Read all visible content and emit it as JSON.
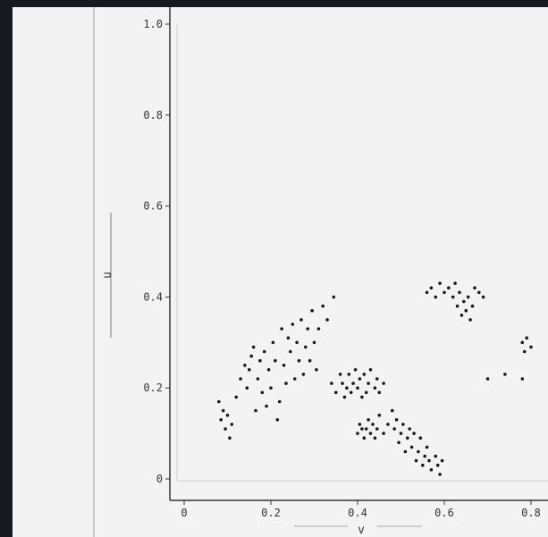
{
  "chart_data": {
    "type": "scatter",
    "title": "",
    "xlabel": "v",
    "ylabel": "u",
    "xlim": [
      -0.02,
      0.82
    ],
    "ylim": [
      -0.06,
      1.02
    ],
    "x_ticks": [
      "0",
      "0.2",
      "0.4",
      "0.6",
      "0.8"
    ],
    "y_ticks": [
      "0",
      "0.2",
      "0.4",
      "0.6",
      "0.8",
      "1.0"
    ],
    "grid": false,
    "series": [
      {
        "points": [
          [
            0.08,
            0.17
          ],
          [
            0.085,
            0.13
          ],
          [
            0.09,
            0.15
          ],
          [
            0.095,
            0.11
          ],
          [
            0.1,
            0.14
          ],
          [
            0.105,
            0.09
          ],
          [
            0.11,
            0.12
          ],
          [
            0.12,
            0.18
          ],
          [
            0.13,
            0.22
          ],
          [
            0.14,
            0.25
          ],
          [
            0.145,
            0.2
          ],
          [
            0.15,
            0.24
          ],
          [
            0.155,
            0.27
          ],
          [
            0.16,
            0.29
          ],
          [
            0.165,
            0.15
          ],
          [
            0.17,
            0.22
          ],
          [
            0.175,
            0.26
          ],
          [
            0.18,
            0.19
          ],
          [
            0.185,
            0.28
          ],
          [
            0.19,
            0.16
          ],
          [
            0.195,
            0.24
          ],
          [
            0.2,
            0.2
          ],
          [
            0.205,
            0.3
          ],
          [
            0.21,
            0.26
          ],
          [
            0.215,
            0.13
          ],
          [
            0.22,
            0.17
          ],
          [
            0.225,
            0.33
          ],
          [
            0.23,
            0.25
          ],
          [
            0.235,
            0.21
          ],
          [
            0.24,
            0.31
          ],
          [
            0.245,
            0.28
          ],
          [
            0.25,
            0.34
          ],
          [
            0.255,
            0.22
          ],
          [
            0.26,
            0.3
          ],
          [
            0.265,
            0.26
          ],
          [
            0.27,
            0.35
          ],
          [
            0.275,
            0.23
          ],
          [
            0.28,
            0.29
          ],
          [
            0.285,
            0.33
          ],
          [
            0.29,
            0.26
          ],
          [
            0.295,
            0.37
          ],
          [
            0.3,
            0.3
          ],
          [
            0.305,
            0.24
          ],
          [
            0.31,
            0.33
          ],
          [
            0.32,
            0.38
          ],
          [
            0.33,
            0.35
          ],
          [
            0.34,
            0.21
          ],
          [
            0.345,
            0.4
          ],
          [
            0.35,
            0.19
          ],
          [
            0.36,
            0.23
          ],
          [
            0.365,
            0.21
          ],
          [
            0.37,
            0.18
          ],
          [
            0.375,
            0.2
          ],
          [
            0.38,
            0.23
          ],
          [
            0.385,
            0.19
          ],
          [
            0.39,
            0.21
          ],
          [
            0.395,
            0.24
          ],
          [
            0.4,
            0.2
          ],
          [
            0.405,
            0.22
          ],
          [
            0.41,
            0.18
          ],
          [
            0.415,
            0.23
          ],
          [
            0.42,
            0.19
          ],
          [
            0.425,
            0.21
          ],
          [
            0.43,
            0.24
          ],
          [
            0.44,
            0.2
          ],
          [
            0.445,
            0.22
          ],
          [
            0.45,
            0.19
          ],
          [
            0.46,
            0.21
          ],
          [
            0.4,
            0.1
          ],
          [
            0.405,
            0.12
          ],
          [
            0.41,
            0.11
          ],
          [
            0.415,
            0.09
          ],
          [
            0.42,
            0.11
          ],
          [
            0.425,
            0.13
          ],
          [
            0.43,
            0.1
          ],
          [
            0.435,
            0.12
          ],
          [
            0.44,
            0.09
          ],
          [
            0.445,
            0.11
          ],
          [
            0.45,
            0.14
          ],
          [
            0.46,
            0.1
          ],
          [
            0.47,
            0.12
          ],
          [
            0.48,
            0.15
          ],
          [
            0.485,
            0.11
          ],
          [
            0.49,
            0.13
          ],
          [
            0.495,
            0.08
          ],
          [
            0.5,
            0.1
          ],
          [
            0.505,
            0.12
          ],
          [
            0.51,
            0.06
          ],
          [
            0.515,
            0.09
          ],
          [
            0.52,
            0.11
          ],
          [
            0.525,
            0.07
          ],
          [
            0.53,
            0.1
          ],
          [
            0.535,
            0.04
          ],
          [
            0.54,
            0.06
          ],
          [
            0.545,
            0.09
          ],
          [
            0.55,
            0.03
          ],
          [
            0.555,
            0.05
          ],
          [
            0.56,
            0.07
          ],
          [
            0.565,
            0.04
          ],
          [
            0.57,
            0.02
          ],
          [
            0.58,
            0.05
          ],
          [
            0.585,
            0.03
          ],
          [
            0.59,
            0.01
          ],
          [
            0.595,
            0.04
          ],
          [
            0.56,
            0.41
          ],
          [
            0.57,
            0.42
          ],
          [
            0.58,
            0.4
          ],
          [
            0.59,
            0.43
          ],
          [
            0.6,
            0.41
          ],
          [
            0.61,
            0.42
          ],
          [
            0.62,
            0.4
          ],
          [
            0.625,
            0.43
          ],
          [
            0.63,
            0.38
          ],
          [
            0.635,
            0.41
          ],
          [
            0.64,
            0.36
          ],
          [
            0.645,
            0.39
          ],
          [
            0.65,
            0.37
          ],
          [
            0.655,
            0.4
          ],
          [
            0.66,
            0.35
          ],
          [
            0.665,
            0.38
          ],
          [
            0.67,
            0.42
          ],
          [
            0.68,
            0.41
          ],
          [
            0.69,
            0.4
          ],
          [
            0.78,
            0.3
          ],
          [
            0.785,
            0.28
          ],
          [
            0.79,
            0.31
          ],
          [
            0.8,
            0.29
          ],
          [
            0.7,
            0.22
          ],
          [
            0.74,
            0.23
          ],
          [
            0.78,
            0.22
          ]
        ]
      }
    ]
  }
}
